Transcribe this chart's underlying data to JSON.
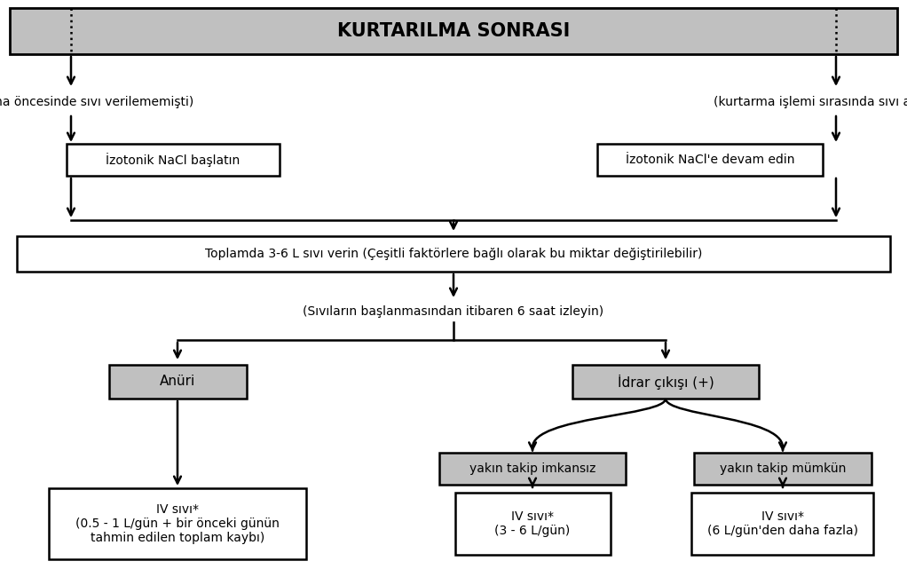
{
  "title": "KURTARILMA SONRASI",
  "bg_color": "#ffffff",
  "header_bg": "#c0c0c0",
  "gray_box_bg": "#c0c0c0",
  "white_box_bg": "#ffffff",
  "left_label": "(kurtarma öncesinde sıvı verilememişti)",
  "right_label": "(kurtarma işlemi sırasında sıvı alıyordu)",
  "left_nacl": "İzotonik NaCl başlatın",
  "right_nacl": "İzotonik NaCl'e devam edin",
  "middle_text": "Toplamda 3-6 L sıvı verin (Çeşitli faktörlere bağlı olarak bu miktar değiştirilebilir)",
  "monitor_text": "(Sıvıların başlanmasından itibaren 6 saat izleyin)",
  "anuri_text": "Anüri",
  "idrar_text": "İdrar çıkışı (+)",
  "yakin1_text": "yakın takip imkansız",
  "yakin2_text": "yakın takip mümkün",
  "iv1_text": "IV sıvı*\n(0.5 - 1 L/gün + bir önceki günün\ntahmin edilen toplam kaybı)",
  "iv2_text": "IV sıvı*\n(3 - 6 L/gün)",
  "iv3_text": "IV sıvı*\n(6 L/gün'den daha fazla)"
}
